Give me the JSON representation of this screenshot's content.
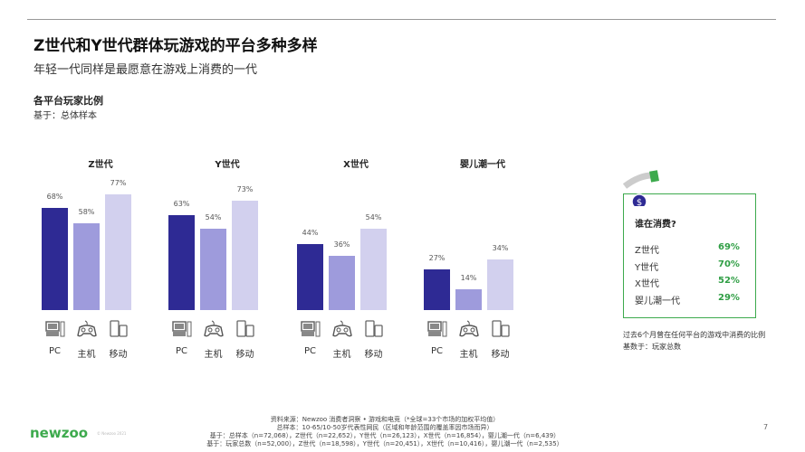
{
  "header": {
    "title": "Z世代和Y世代群体玩游戏的平台多种多样",
    "subtitle": "年轻一代同样是最愿意在游戏上消费的一代"
  },
  "chart_data": {
    "type": "bar",
    "title": "各平台玩家比例",
    "subtitle": "基于：总体样本",
    "groups": [
      "Z世代",
      "Y世代",
      "X世代",
      "婴儿潮一代"
    ],
    "categories": [
      "PC",
      "主机",
      "移动"
    ],
    "category_icons": [
      "pc-icon",
      "gamepad-icon",
      "mobile-icon"
    ],
    "series": [
      {
        "group": "Z世代",
        "values": [
          68,
          58,
          77
        ]
      },
      {
        "group": "Y世代",
        "values": [
          63,
          54,
          73
        ]
      },
      {
        "group": "X世代",
        "values": [
          44,
          36,
          54
        ]
      },
      {
        "group": "婴儿潮一代",
        "values": [
          27,
          14,
          34
        ]
      }
    ],
    "unit": "%",
    "colors": [
      "#2e2a94",
      "#9e9bdc",
      "#d2d0ee"
    ],
    "ylim": [
      0,
      100
    ],
    "grid": false
  },
  "spending": {
    "icon": "dollar-coin-icon",
    "title": "谁在消费?",
    "rows": [
      {
        "label": "Z世代",
        "value": "69%"
      },
      {
        "label": "Y世代",
        "value": "70%"
      },
      {
        "label": "X世代",
        "value": "52%"
      },
      {
        "label": "婴儿潮一代",
        "value": "29%"
      }
    ],
    "note": "过去6个月曾在任何平台的游戏中消费的比例",
    "base": "基数于：玩家总数",
    "accent": "#3daa4d"
  },
  "footer": {
    "logo": "newzoo",
    "copyright": "© Newzoo 2021",
    "lines": [
      "资料来源：Newzoo 消费者洞察 • 游戏和电竞（*全球=33个市场的加权平均值）",
      "总样本：10-65/10-50岁代表性网民（区域和年龄范围的覆盖率因市场而异）",
      "基于：总样本（n=72,068），Z世代（n=22,652），Y世代（n=26,123），X世代（n=16,854），婴儿潮一代（n=6,439）",
      "基于：玩家总数（n=52,000），Z世代（n=18,598），Y世代（n=20,451），X世代（n=10,416），婴儿潮一代（n=2,535）"
    ],
    "page": "7"
  }
}
